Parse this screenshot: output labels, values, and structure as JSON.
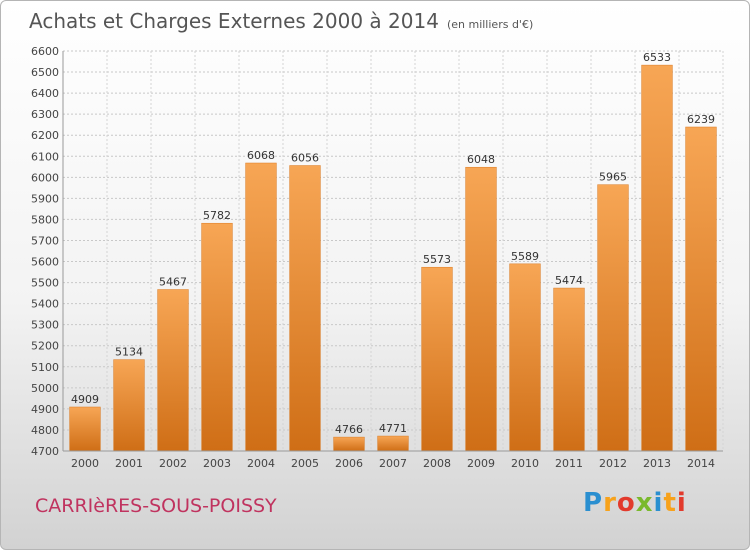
{
  "chart_data": {
    "type": "bar",
    "title": "Achats et Charges Externes 2000 à 2014",
    "subtitle": "(en milliers d'€)",
    "categories": [
      "2000",
      "2001",
      "2002",
      "2003",
      "2004",
      "2005",
      "2006",
      "2007",
      "2008",
      "2009",
      "2010",
      "2011",
      "2012",
      "2013",
      "2014"
    ],
    "values": [
      4909,
      5134,
      5467,
      5782,
      6068,
      6056,
      4766,
      4771,
      5573,
      6048,
      5589,
      5474,
      5965,
      6533,
      6239
    ],
    "ylim": [
      4700,
      6600
    ],
    "yticks": [
      4700,
      4800,
      4900,
      5000,
      5100,
      5200,
      5300,
      5400,
      5500,
      5600,
      5700,
      5800,
      5900,
      6000,
      6100,
      6200,
      6300,
      6400,
      6500,
      6600
    ],
    "grid": true,
    "bar_color": "#f08a2e",
    "xlabel": "",
    "ylabel": ""
  },
  "location": "CARRIèRES-SOUS-POISSY",
  "logo": {
    "letters": [
      "P",
      "r",
      "o",
      "x",
      "i",
      "t",
      "i"
    ],
    "colors": [
      "#2a8fd0",
      "#f7a21b",
      "#e23a2c",
      "#7ab92d",
      "#2a8fd0",
      "#f7a21b",
      "#e23a2c"
    ]
  }
}
